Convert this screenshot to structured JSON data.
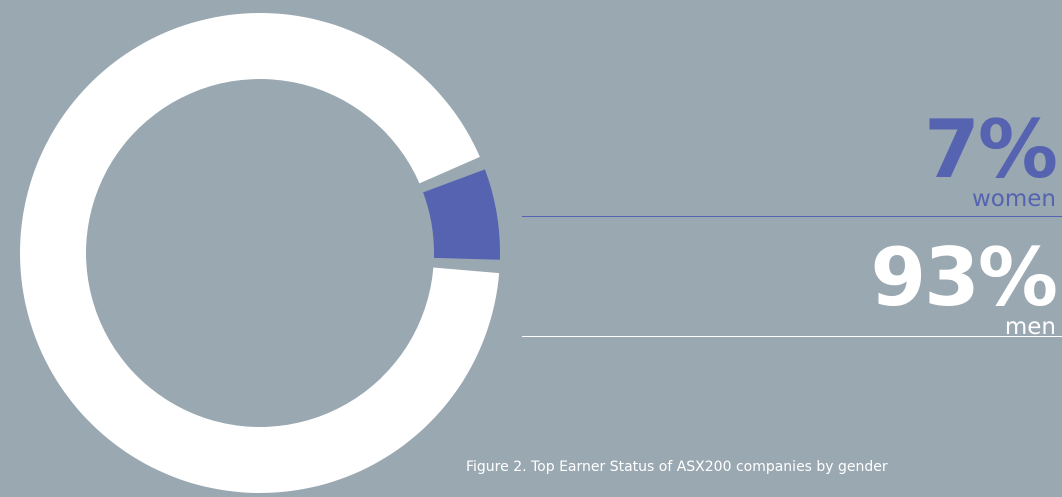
{
  "chart_data": {
    "type": "pie",
    "donut": true,
    "categories": [
      "women",
      "men"
    ],
    "values": [
      7,
      93
    ],
    "value_labels": [
      "7%",
      "93%"
    ],
    "title": "",
    "caption": "Figure 2. Top Earner Status of ASX200 companies by gender",
    "colors": {
      "women": "#5563b0",
      "men": "#ffffff",
      "background": "#9aa8b2"
    },
    "legend": "right"
  }
}
